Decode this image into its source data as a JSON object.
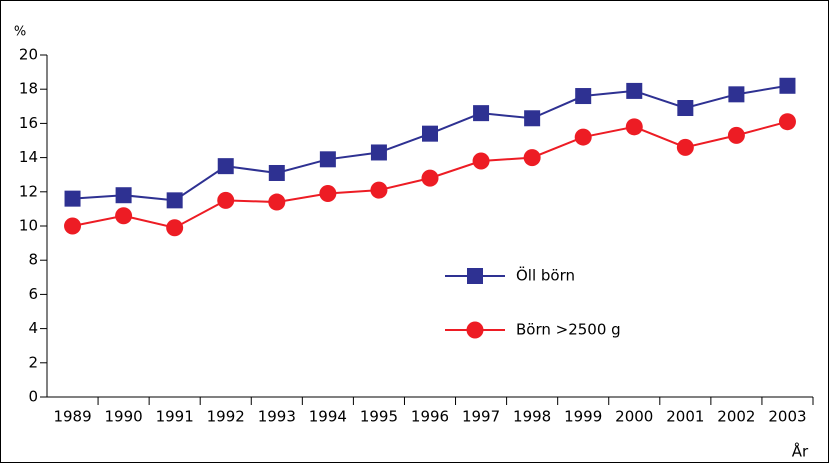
{
  "chart_data": {
    "type": "line",
    "y_label": "%",
    "x_label": "År",
    "categories": [
      "1989",
      "1990",
      "1991",
      "1992",
      "1993",
      "1994",
      "1995",
      "1996",
      "1997",
      "1998",
      "1999",
      "2000",
      "2001",
      "2002",
      "2003"
    ],
    "series": [
      {
        "name": "Öll börn",
        "color": "#2e3192",
        "marker": "square",
        "values": [
          11.6,
          11.8,
          11.5,
          13.5,
          13.1,
          13.9,
          14.3,
          15.4,
          16.6,
          16.3,
          17.6,
          17.9,
          16.9,
          17.7,
          18.2
        ]
      },
      {
        "name": "Börn >2500 g",
        "color": "#ed1c24",
        "marker": "circle",
        "values": [
          10.0,
          10.6,
          9.9,
          11.5,
          11.4,
          11.9,
          12.1,
          12.8,
          13.8,
          14.0,
          15.2,
          15.8,
          14.6,
          15.3,
          16.1
        ]
      }
    ],
    "ylim": [
      0,
      20
    ],
    "yticks": [
      0,
      2,
      4,
      6,
      8,
      10,
      12,
      14,
      16,
      18,
      20
    ],
    "grid": false
  }
}
